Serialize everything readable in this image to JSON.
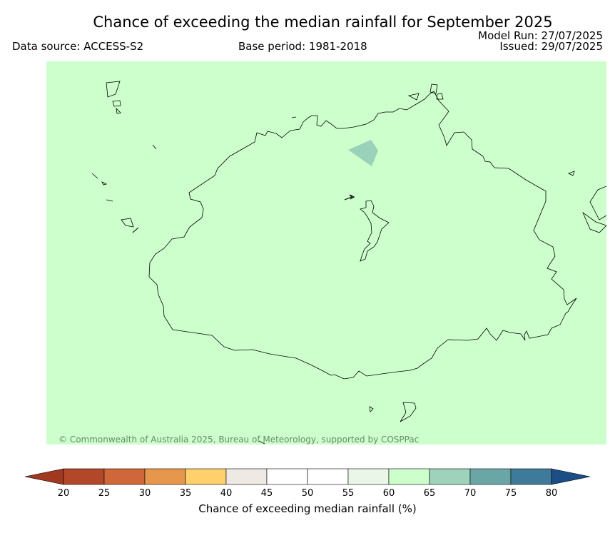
{
  "header": {
    "title": "Chance of exceeding the median rainfall for September 2025",
    "data_source": "Data source: ACCESS-S2",
    "base_period": "Base period: 1981-2018",
    "model_run": "Model Run: 27/07/2025",
    "issued": "Issued: 29/07/2025"
  },
  "map": {
    "fill_color": "#ccffcc",
    "highlight_color": "#99d1bb",
    "copyright": "© Commonwealth of Australia 2025, Bureau of Meteorology, supported by COSPPac"
  },
  "colorbar": {
    "label": "Chance of exceeding median rainfall (%)",
    "ticks": [
      "20",
      "25",
      "30",
      "35",
      "40",
      "45",
      "50",
      "55",
      "60",
      "65",
      "70",
      "75",
      "80"
    ],
    "under_color": "#a0391f",
    "over_color": "#1a4e85",
    "colors": [
      "#b2472a",
      "#d0673a",
      "#e6974b",
      "#ffd06b",
      "#efe9e4",
      "#ffffff",
      "#ffffff",
      "#eaf7e8",
      "#ccffcc",
      "#9ed2bb",
      "#6aa6a6",
      "#3f7a9a"
    ]
  }
}
